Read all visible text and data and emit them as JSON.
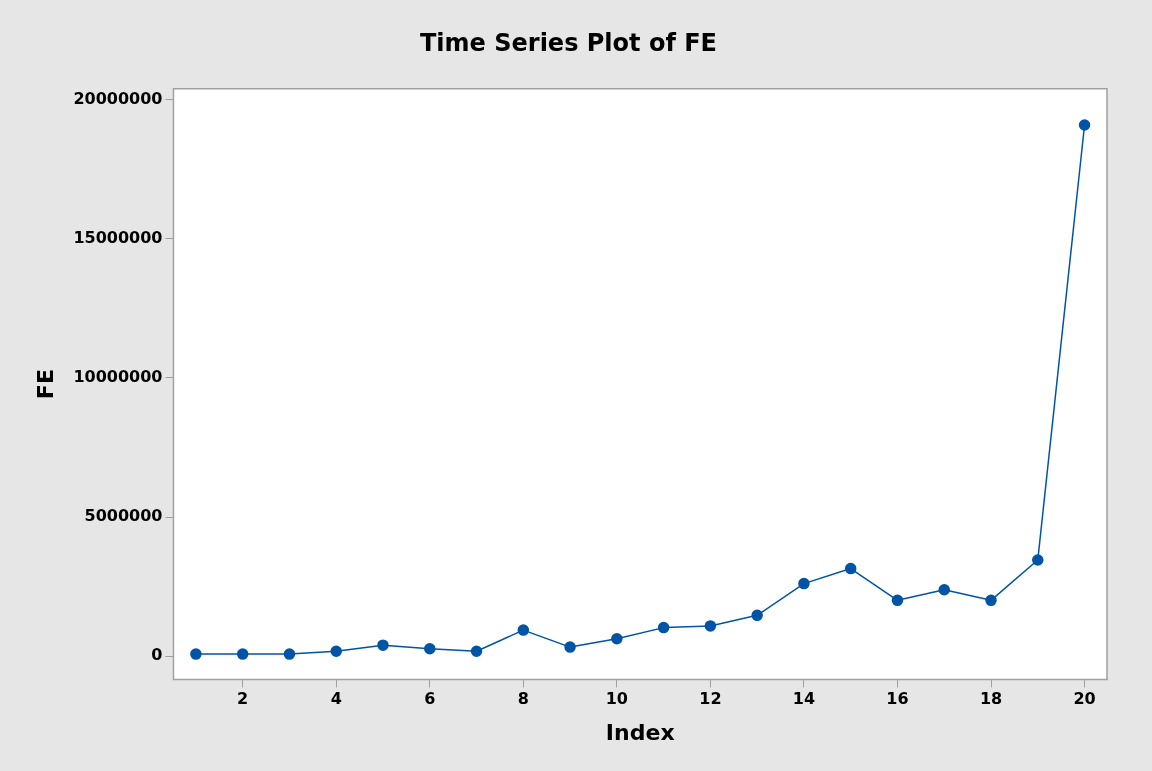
{
  "chart_data": {
    "type": "line",
    "title": "Time Series Plot of FE",
    "xlabel": "Index",
    "ylabel": "FE",
    "x": [
      1,
      2,
      3,
      4,
      5,
      6,
      7,
      8,
      9,
      10,
      11,
      12,
      13,
      14,
      15,
      16,
      17,
      18,
      19,
      20
    ],
    "series": [
      {
        "color": "#0054a6",
        "values": [
          80000,
          80000,
          80000,
          180000,
          400000,
          270000,
          180000,
          940000,
          330000,
          630000,
          1030000,
          1090000,
          1470000,
          2610000,
          3150000,
          2010000,
          2390000,
          2010000,
          3460000,
          19080000
        ]
      }
    ],
    "xlim": [
      0.52,
      20.48
    ],
    "xticks": [
      2,
      4,
      6,
      8,
      10,
      12,
      14,
      16,
      18,
      20
    ],
    "ylim": [
      -830000,
      20380000
    ],
    "yticks": [
      0,
      5000000,
      10000000,
      15000000,
      20000000
    ],
    "grid": false,
    "legend": false,
    "marker": "circle",
    "line_style": "solid"
  }
}
